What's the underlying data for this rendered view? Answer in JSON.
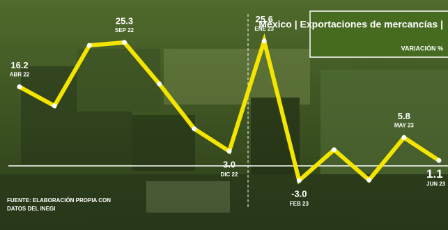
{
  "chart_data": {
    "type": "line",
    "title": "México | Exportaciones de mercancías |",
    "subtitle": "VARIACIÓN %",
    "source": "FUENTE: ELABORACIÓN PROPIA CON DATOS DEL INEGI",
    "categories": [
      "ABR 22",
      null,
      null,
      "SEP 22",
      null,
      null,
      "DIC 22",
      "ENE 23",
      "FEB 23",
      null,
      null,
      "MAY 23",
      "JUN 23"
    ],
    "values": [
      16.2,
      12.3,
      24.7,
      25.3,
      16.8,
      7.6,
      3.0,
      25.6,
      -3.0,
      3.3,
      -2.9,
      5.8,
      1.1
    ],
    "value_labels": [
      "16.2",
      null,
      null,
      "25.3",
      null,
      null,
      "3.0",
      "25.6",
      "-3.0",
      null,
      null,
      "5.8",
      "1.1"
    ],
    "color": "#f3e500",
    "ylim": [
      -6,
      30
    ]
  }
}
